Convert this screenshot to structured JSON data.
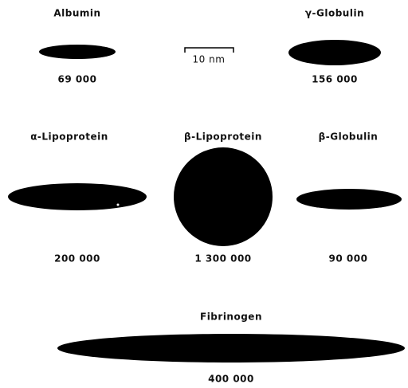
{
  "scale_bar": "10 nm",
  "nodes": [
    {
      "label": "Albumin",
      "mass": "69 000"
    },
    {
      "label": "γ-Globulin",
      "mass": "156 000"
    },
    {
      "label": "α-Lipoprotein",
      "mass": "200 000"
    },
    {
      "label": "β-Lipoprotein",
      "mass": "1 300 000"
    },
    {
      "label": "β-Globulin",
      "mass": "90 000"
    },
    {
      "label": "Fibrinogen",
      "mass": "400 000"
    }
  ]
}
